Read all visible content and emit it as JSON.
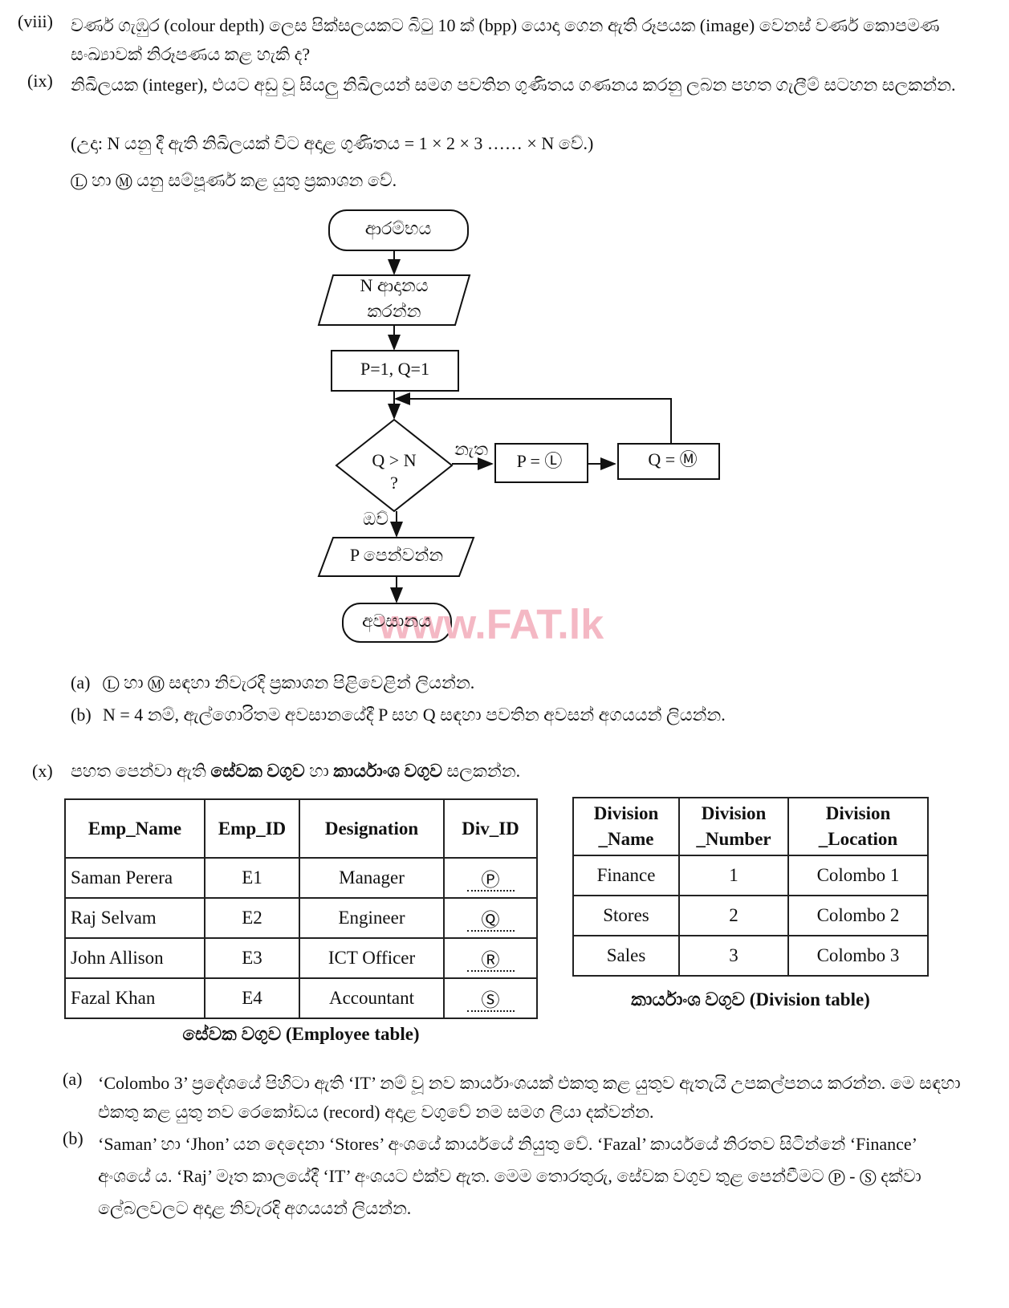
{
  "q8": {
    "number": "(viii)",
    "text": "වර්ණ ගැඹුර (colour depth) ලෙස පික්සලයකට බිටු 10 ක් (bpp) යොදා ගෙන ඇති රූපයක (image) වෙනස් වර්ණ කොපමණ සංඛ්‍යාවක් නිරූපණය කළ හැකි ද?"
  },
  "q9": {
    "number": "(ix)",
    "text": "නිඛිලයක (integer), එයට අඩු වූ සියලු නිඛිලයන් සමග පවතින ගුණිතය ගණනය කරනු ලබන පහත ගැලීම් සටහන සලකන්න.",
    "example": "(උදා: N යනු දී ඇති නිඛිලයක් විට අදාළ ගුණිතය = 1 × 2 × 3 …… × N වේ.)",
    "note": "Ⓛ හා Ⓜ යනු සම්පූර්ණ කළ යුතු ප්‍රකාශන වේ.",
    "flowchart": {
      "start": "ආරම්භය",
      "input": [
        "N ආදානය",
        "කරන්න"
      ],
      "init": "P=1, Q=1",
      "decision": [
        "Q > N",
        "?"
      ],
      "no": "නැත",
      "p_step": "P = Ⓛ",
      "q_step": "Q = Ⓜ",
      "yes": "ඔව්",
      "output": "P පෙන්වන්න",
      "end": "අවසානය"
    },
    "watermark": "www.FAT.lk",
    "parts": [
      {
        "label": "(a)",
        "text": "Ⓛ හා Ⓜ සඳහා නිවැරදි ප්‍රකාශන පිළිවෙළින් ලියන්න."
      },
      {
        "label": "(b)",
        "text": "N = 4 නම්, ඇල්ගොරිතම අවසානයේදී P සහ Q සඳහා පවතින අවසන් අගයයන් ලියන්න."
      }
    ]
  },
  "q10": {
    "number": "(x)",
    "text": [
      "පහත පෙන්වා ඇති ",
      "සේවක වගුව",
      " හා ",
      "කාර්යාංශ වගුව",
      " සලකන්න."
    ],
    "employee_table": {
      "headers": [
        "Emp_Name",
        "Emp_ID",
        "Designation",
        "Div_ID"
      ],
      "rows": [
        [
          "Saman Perera",
          "E1",
          "Manager",
          "Ⓟ"
        ],
        [
          "Raj Selvam",
          "E2",
          "Engineer",
          "Ⓠ"
        ],
        [
          "John Allison",
          "E3",
          "ICT Officer",
          "Ⓡ"
        ],
        [
          "Fazal Khan",
          "E4",
          "Accountant",
          "Ⓢ"
        ]
      ],
      "caption": [
        "සේවක වගුව",
        " (Employee table)"
      ]
    },
    "division_table": {
      "headers": [
        [
          "Division",
          "_Name"
        ],
        [
          "Division",
          "_Number"
        ],
        [
          "Division",
          "_Location"
        ]
      ],
      "rows": [
        [
          "Finance",
          1,
          "Colombo 1"
        ],
        [
          "Stores",
          2,
          "Colombo 2"
        ],
        [
          "Sales",
          3,
          "Colombo 3"
        ]
      ],
      "caption": [
        "කාර්යාංශ වගුව",
        " (Division table)"
      ]
    },
    "parts": [
      {
        "label": "(a)",
        "text": "‘Colombo 3’ ප්‍රදේශයේ පිහිටා ඇති ‘IT’ නම් වූ නව කාර්යාංශයක් එකතු කළ යුතුව ඇතැයි උපකල්පනය කරන්න. මෙ සඳහා එකතු කළ යුතු නව රෙකෝඩය (record) අදාළ වගුවේ නම සමග ලියා දක්වන්න."
      },
      {
        "label": "(b)",
        "text": "‘Saman’ හා ‘Jhon’ යන දෙදෙනා ‘Stores’ අංශයේ කාර්යයේ නියුතු වේ. ‘Fazal’ කාර්යයේ නිරතව සිටින්නේ ‘Finance’ අංශයේ ය. ‘Raj’ මෑත කාලයේදී ‘IT’ අංශයට එක්ව ඇත. මෙම තොරතුරු, සේවක වගුව තුළ පෙන්වීමට Ⓟ - Ⓢ දක්වා ලේබලවලට අදාළ නිවැරදි අගයයන් ලියන්න."
      }
    ]
  }
}
